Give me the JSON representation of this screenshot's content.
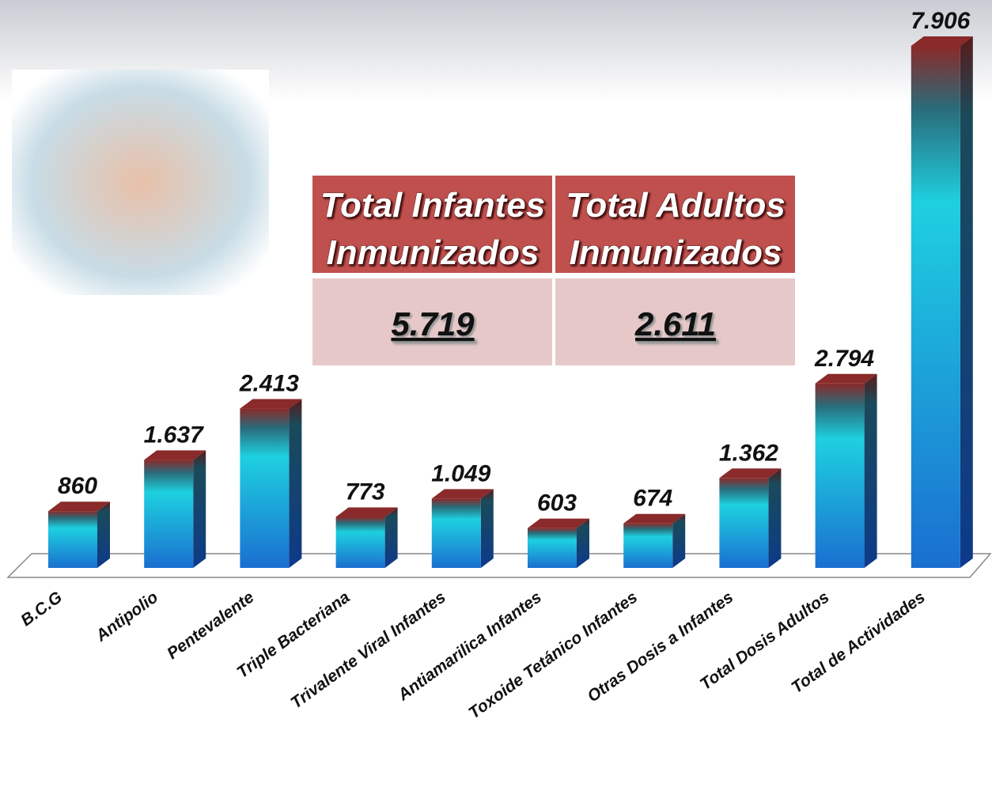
{
  "chart_data": {
    "type": "bar",
    "categories": [
      "B.C.G",
      "Antipolio",
      "Pentevalente",
      "Triple Bacteriana",
      "Trivalente Viral Infantes",
      "Antiamarilica Infantes",
      "Toxoide Tetánico Infantes",
      "Otras Dosis a Infantes",
      "Total Dosis Adultos",
      "Total de Actividades"
    ],
    "values": [
      860,
      1637,
      2413,
      773,
      1049,
      603,
      674,
      1362,
      2794,
      7906
    ],
    "value_labels": [
      "860",
      "1.637",
      "2.413",
      "773",
      "1.049",
      "603",
      "674",
      "1.362",
      "2.794",
      "7.906"
    ],
    "color": "#1ed0e0",
    "table": {
      "headers": [
        [
          "Total Infantes",
          "Inmunizados"
        ],
        [
          "Total Adultos",
          "Inmunizados"
        ]
      ],
      "cells": [
        "5.719",
        "2.611"
      ]
    }
  }
}
